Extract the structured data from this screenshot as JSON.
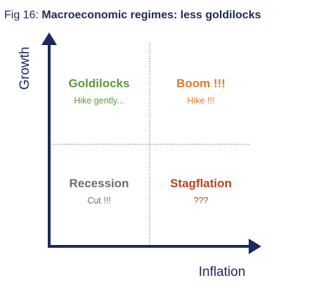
{
  "header": {
    "prefix": "Fig 16:",
    "title": "Macroeconomic regimes: less goldilocks"
  },
  "axes": {
    "y": "Growth",
    "x": "Inflation"
  },
  "quadrants": [
    {
      "label": "Goldilocks",
      "action": "Hike gently...",
      "color": "#5a9a3c"
    },
    {
      "label": "Boom !!!",
      "action": "Hike !!!",
      "color": "#e07b2a"
    },
    {
      "label": "Recession",
      "action": "Cut !!!",
      "color": "#6d6d6d"
    },
    {
      "label": "Stagflation",
      "action": "???",
      "color": "#b5441f"
    }
  ]
}
